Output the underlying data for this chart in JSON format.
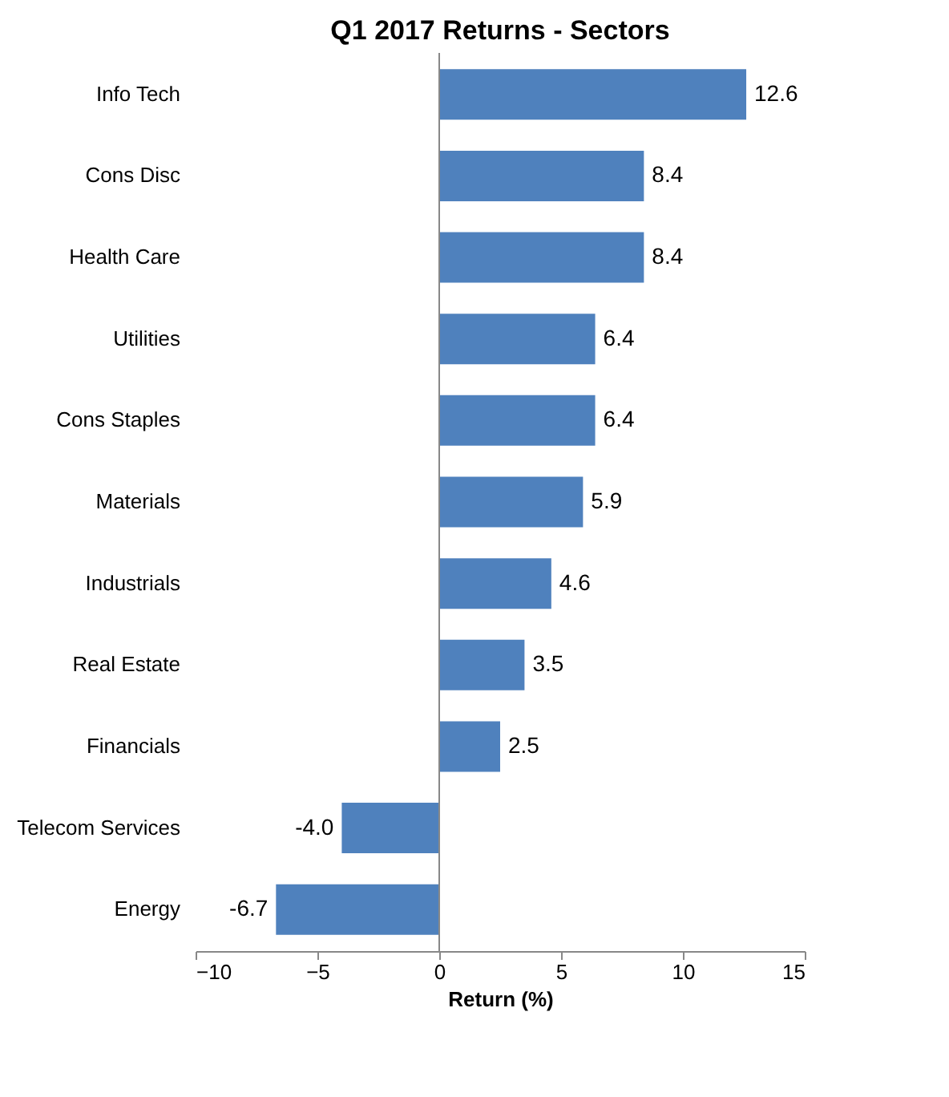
{
  "chart_data": {
    "type": "bar",
    "orientation": "horizontal",
    "title": "Q1 2017 Returns - Sectors",
    "xlabel": "Return (%)",
    "categories": [
      "Info Tech",
      "Cons Disc",
      "Health Care",
      "Utilities",
      "Cons Staples",
      "Materials",
      "Industrials",
      "Real Estate",
      "Financials",
      "Telecom Services",
      "Energy"
    ],
    "values": [
      12.6,
      8.4,
      8.4,
      6.4,
      6.4,
      5.9,
      4.6,
      3.5,
      2.5,
      -4.0,
      -6.7
    ],
    "value_labels": [
      "12.6",
      "8.4",
      "8.4",
      "6.4",
      "6.4",
      "5.9",
      "4.6",
      "3.5",
      "2.5",
      "-4.0",
      "-6.7"
    ],
    "color": "#4f81bd",
    "xlim": [
      -10,
      15
    ],
    "xticks": [
      -10,
      -5,
      0,
      5,
      10,
      15
    ],
    "grid": false,
    "ref_lines": [
      {
        "axis": "x",
        "value": 0,
        "color": "#888888"
      }
    ]
  }
}
